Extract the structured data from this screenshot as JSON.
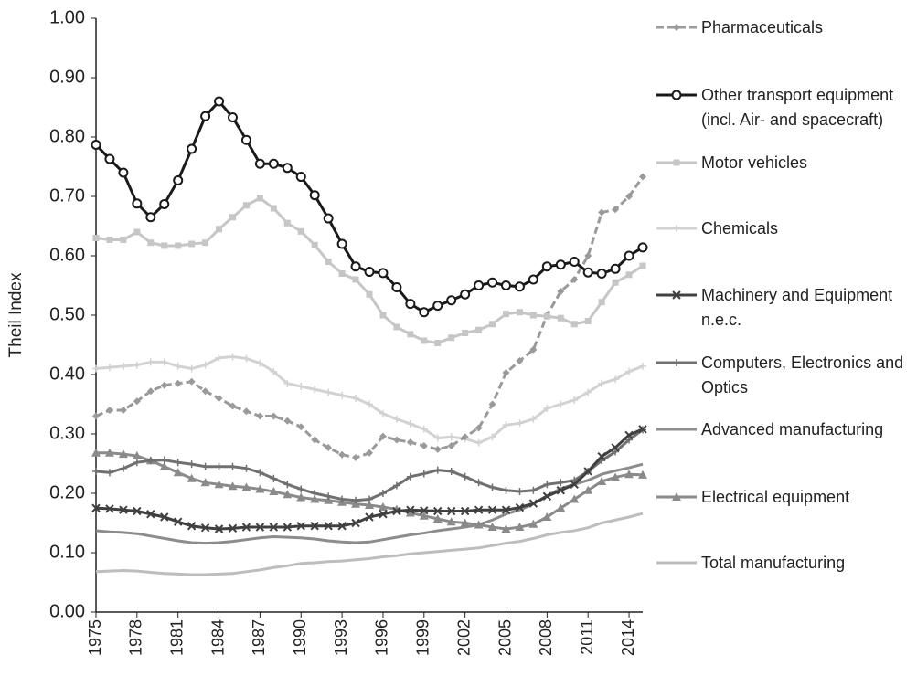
{
  "chart_data": {
    "type": "line",
    "y_label": "Theil Index",
    "x": [
      1975,
      1976,
      1977,
      1978,
      1979,
      1980,
      1981,
      1982,
      1983,
      1984,
      1985,
      1986,
      1987,
      1988,
      1989,
      1990,
      1991,
      1992,
      1993,
      1994,
      1995,
      1996,
      1997,
      1998,
      1999,
      2000,
      2001,
      2002,
      2003,
      2004,
      2005,
      2006,
      2007,
      2008,
      2009,
      2010,
      2011,
      2012,
      2013,
      2014,
      2015
    ],
    "xlim": [
      1975,
      2015
    ],
    "xticks": [
      1975,
      1978,
      1981,
      1984,
      1987,
      1990,
      1993,
      1996,
      1999,
      2002,
      2005,
      2008,
      2011,
      2014
    ],
    "ylim": [
      0,
      1
    ],
    "yticks": [
      {
        "value": 0,
        "label": "0.00"
      },
      {
        "value": 0.1,
        "label": "0.10"
      },
      {
        "value": 0.2,
        "label": "0.20"
      },
      {
        "value": 0.3,
        "label": "0.30"
      },
      {
        "value": 0.4,
        "label": "0.40"
      },
      {
        "value": 0.5,
        "label": "0.50"
      },
      {
        "value": 0.6,
        "label": "0.60"
      },
      {
        "value": 0.7,
        "label": "0.70"
      },
      {
        "value": 0.8,
        "label": "0.80"
      },
      {
        "value": 0.9,
        "label": "0.90"
      },
      {
        "value": 1,
        "label": "1.00"
      }
    ],
    "grid": false,
    "legend": "right",
    "series": [
      {
        "name": "Pharmaceuticals",
        "color": "#9a9a9a",
        "marker": "diamond",
        "dash": true,
        "values": [
          0.33,
          0.34,
          0.34,
          0.355,
          0.372,
          0.382,
          0.385,
          0.388,
          0.372,
          0.36,
          0.347,
          0.338,
          0.33,
          0.33,
          0.322,
          0.312,
          0.29,
          0.277,
          0.265,
          0.26,
          0.268,
          0.296,
          0.29,
          0.286,
          0.28,
          0.274,
          0.28,
          0.295,
          0.31,
          0.35,
          0.403,
          0.423,
          0.442,
          0.5,
          0.54,
          0.56,
          0.6,
          0.673,
          0.678,
          0.7,
          0.733
        ]
      },
      {
        "name": "Other transport equipment (incl. Air- and spacecraft)",
        "color": "#1a1a1a",
        "marker": "circle",
        "dash": false,
        "values": [
          0.787,
          0.763,
          0.74,
          0.688,
          0.665,
          0.687,
          0.727,
          0.78,
          0.835,
          0.86,
          0.833,
          0.795,
          0.755,
          0.755,
          0.748,
          0.733,
          0.702,
          0.663,
          0.62,
          0.582,
          0.573,
          0.571,
          0.547,
          0.519,
          0.505,
          0.516,
          0.525,
          0.535,
          0.55,
          0.555,
          0.55,
          0.548,
          0.56,
          0.582,
          0.585,
          0.59,
          0.572,
          0.57,
          0.578,
          0.6,
          0.614
        ]
      },
      {
        "name": "Motor vehicles",
        "color": "#c6c6c6",
        "marker": "square",
        "dash": false,
        "values": [
          0.63,
          0.627,
          0.627,
          0.64,
          0.622,
          0.617,
          0.617,
          0.62,
          0.622,
          0.645,
          0.665,
          0.685,
          0.697,
          0.68,
          0.655,
          0.641,
          0.618,
          0.59,
          0.57,
          0.56,
          0.535,
          0.5,
          0.48,
          0.468,
          0.457,
          0.453,
          0.462,
          0.47,
          0.475,
          0.485,
          0.502,
          0.505,
          0.5,
          0.498,
          0.495,
          0.485,
          0.49,
          0.522,
          0.555,
          0.568,
          0.583
        ]
      },
      {
        "name": "Chemicals",
        "color": "#d2d2d2",
        "marker": "plus",
        "dash": false,
        "values": [
          0.41,
          0.412,
          0.414,
          0.416,
          0.421,
          0.421,
          0.414,
          0.41,
          0.416,
          0.428,
          0.43,
          0.427,
          0.419,
          0.405,
          0.385,
          0.38,
          0.375,
          0.37,
          0.365,
          0.36,
          0.35,
          0.334,
          0.325,
          0.317,
          0.308,
          0.293,
          0.295,
          0.292,
          0.285,
          0.295,
          0.315,
          0.318,
          0.325,
          0.343,
          0.35,
          0.357,
          0.37,
          0.385,
          0.392,
          0.405,
          0.414
        ]
      },
      {
        "name": "Machinery and Equipment n.e.c.",
        "color": "#404040",
        "marker": "x",
        "dash": false,
        "values": [
          0.175,
          0.174,
          0.172,
          0.17,
          0.165,
          0.16,
          0.152,
          0.145,
          0.142,
          0.14,
          0.141,
          0.143,
          0.143,
          0.143,
          0.143,
          0.145,
          0.145,
          0.145,
          0.145,
          0.15,
          0.16,
          0.165,
          0.17,
          0.172,
          0.171,
          0.17,
          0.17,
          0.17,
          0.172,
          0.172,
          0.172,
          0.176,
          0.183,
          0.195,
          0.205,
          0.215,
          0.237,
          0.262,
          0.277,
          0.298,
          0.308
        ]
      },
      {
        "name": "Computers, Electronics and Optics",
        "color": "#707070",
        "marker": "plus",
        "dash": false,
        "values": [
          0.237,
          0.235,
          0.242,
          0.252,
          0.255,
          0.256,
          0.252,
          0.249,
          0.245,
          0.245,
          0.245,
          0.242,
          0.235,
          0.225,
          0.215,
          0.207,
          0.2,
          0.195,
          0.19,
          0.188,
          0.19,
          0.2,
          0.213,
          0.228,
          0.233,
          0.239,
          0.237,
          0.228,
          0.218,
          0.21,
          0.205,
          0.203,
          0.205,
          0.215,
          0.218,
          0.222,
          0.237,
          0.255,
          0.27,
          0.29,
          0.307
        ]
      },
      {
        "name": "Advanced manufacturing",
        "color": "#8c8c8c",
        "marker": "none",
        "dash": false,
        "values": [
          0.137,
          0.135,
          0.134,
          0.132,
          0.128,
          0.124,
          0.12,
          0.117,
          0.116,
          0.117,
          0.119,
          0.122,
          0.125,
          0.127,
          0.126,
          0.125,
          0.123,
          0.12,
          0.118,
          0.117,
          0.118,
          0.122,
          0.126,
          0.13,
          0.133,
          0.137,
          0.14,
          0.143,
          0.147,
          0.155,
          0.165,
          0.172,
          0.182,
          0.196,
          0.208,
          0.215,
          0.222,
          0.232,
          0.238,
          0.243,
          0.249
        ]
      },
      {
        "name": "Electrical equipment",
        "color": "#8a8a8a",
        "marker": "triangle",
        "dash": false,
        "values": [
          0.268,
          0.268,
          0.266,
          0.263,
          0.255,
          0.245,
          0.235,
          0.225,
          0.218,
          0.215,
          0.212,
          0.21,
          0.207,
          0.203,
          0.198,
          0.193,
          0.19,
          0.188,
          0.185,
          0.182,
          0.18,
          0.177,
          0.173,
          0.167,
          0.162,
          0.157,
          0.152,
          0.15,
          0.147,
          0.143,
          0.14,
          0.143,
          0.148,
          0.16,
          0.175,
          0.19,
          0.205,
          0.22,
          0.227,
          0.232,
          0.231
        ]
      },
      {
        "name": "Total manufacturing",
        "color": "#bdbdbd",
        "marker": "none",
        "dash": false,
        "values": [
          0.068,
          0.069,
          0.07,
          0.069,
          0.067,
          0.065,
          0.064,
          0.063,
          0.063,
          0.064,
          0.065,
          0.068,
          0.071,
          0.075,
          0.078,
          0.082,
          0.083,
          0.085,
          0.086,
          0.088,
          0.09,
          0.093,
          0.095,
          0.098,
          0.1,
          0.102,
          0.104,
          0.106,
          0.108,
          0.112,
          0.116,
          0.119,
          0.124,
          0.13,
          0.134,
          0.137,
          0.142,
          0.15,
          0.155,
          0.16,
          0.166
        ]
      }
    ]
  }
}
